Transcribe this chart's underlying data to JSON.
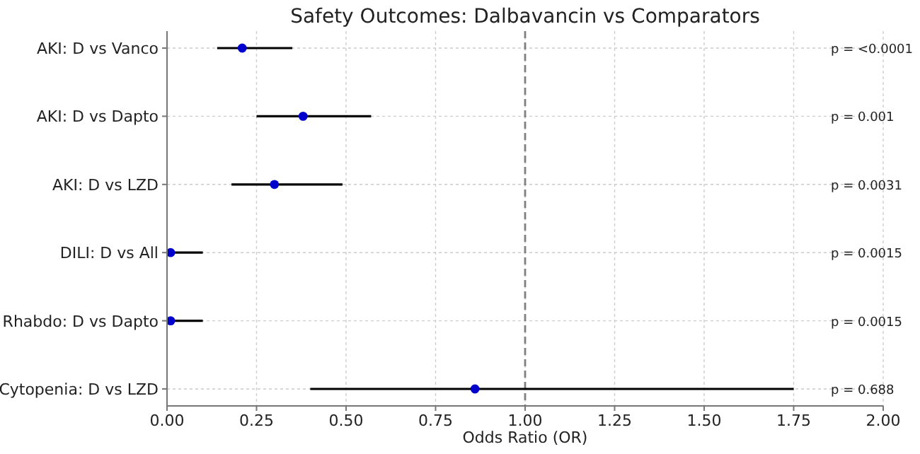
{
  "chart_data": {
    "type": "scatter",
    "orientation": "horizontal",
    "title": "Safety Outcomes: Dalbavancin vs Comparators",
    "xlabel": "Odds Ratio (OR)",
    "categories": [
      "AKI: D vs Vanco",
      "AKI: D vs Dapto",
      "AKI: D vs LZD",
      "DILI: D vs All",
      "Rhabdo: D vs Dapto",
      "Cytopenia: D vs LZD"
    ],
    "values": [
      0.21,
      0.38,
      0.3,
      0.01,
      0.01,
      0.86
    ],
    "errors": [
      [
        0.14,
        0.35
      ],
      [
        0.25,
        0.57
      ],
      [
        0.18,
        0.49
      ],
      [
        0,
        0.1
      ],
      [
        0,
        0.1
      ],
      [
        0.4,
        1.75
      ]
    ],
    "annotations": [
      "p = <0.0001",
      "p = 0.001",
      "p = 0.0031",
      "p = 0.0015",
      "p = 0.0015",
      "p = 0.688"
    ],
    "color": "#0000cc",
    "marker": "circle",
    "xlim": [
      0,
      2
    ],
    "xticks": [
      {
        "value": 0,
        "label": "0.00"
      },
      0.25,
      {
        "value": 0.5,
        "label": "0.50"
      },
      0.75,
      {
        "value": 1,
        "label": "1.00"
      },
      1.25,
      {
        "value": 1.5,
        "label": "1.50"
      },
      1.75,
      {
        "value": 2,
        "label": "2.00"
      }
    ],
    "ref_lines": [
      {
        "axis": "x",
        "value": 1,
        "color": "#808080",
        "line_style": "dashed"
      }
    ],
    "grid": true
  }
}
